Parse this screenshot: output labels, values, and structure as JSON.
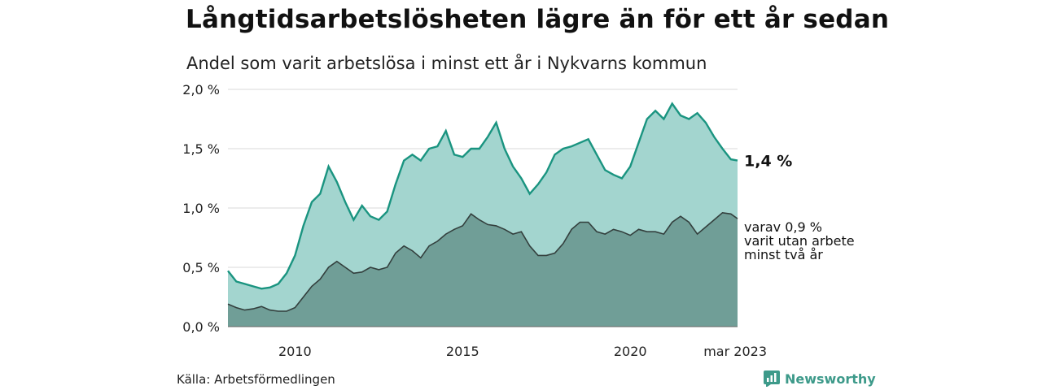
{
  "title": "Långtidsarbetslösheten lägre än för ett år sedan",
  "subtitle": "Andel som varit arbetslösa i minst ett år i Nykvarns kommun",
  "source": "Källa: Arbetsförmedlingen",
  "brand": "Newsworthy",
  "colors": {
    "total_line": "#1a9480",
    "total_fill": "#a3d5cf",
    "sub_line": "#333f3d",
    "sub_fill": "#709e97",
    "brand": "#3d9a8a",
    "grid": "#d9d9d9"
  },
  "chart_data": {
    "type": "area",
    "x_range": [
      2008.0,
      2023.2
    ],
    "ylim": [
      0,
      2.0
    ],
    "y_ticks": [
      {
        "value": 0,
        "label": "0,0 %"
      },
      {
        "value": 0.5,
        "label": "0,5 %"
      },
      {
        "value": 1.0,
        "label": "1,0 %"
      },
      {
        "value": 1.5,
        "label": "1,5 %"
      },
      {
        "value": 2.0,
        "label": "2,0 %"
      }
    ],
    "x_ticks": [
      {
        "value": 2010,
        "label": "2010"
      },
      {
        "value": 2015,
        "label": "2015"
      },
      {
        "value": 2020,
        "label": "2020"
      },
      {
        "value": 2023.2,
        "label": "mar 2023"
      }
    ],
    "grid": true,
    "series": [
      {
        "name": "Andel som varit arbetslösa i minst ett år",
        "end_label": "1,4 %",
        "points": [
          [
            2008.0,
            0.47
          ],
          [
            2008.25,
            0.38
          ],
          [
            2008.5,
            0.36
          ],
          [
            2008.75,
            0.34
          ],
          [
            2009.0,
            0.32
          ],
          [
            2009.25,
            0.33
          ],
          [
            2009.5,
            0.36
          ],
          [
            2009.75,
            0.45
          ],
          [
            2010.0,
            0.6
          ],
          [
            2010.25,
            0.85
          ],
          [
            2010.5,
            1.05
          ],
          [
            2010.75,
            1.12
          ],
          [
            2011.0,
            1.35
          ],
          [
            2011.25,
            1.22
          ],
          [
            2011.5,
            1.05
          ],
          [
            2011.75,
            0.9
          ],
          [
            2012.0,
            1.02
          ],
          [
            2012.25,
            0.93
          ],
          [
            2012.5,
            0.9
          ],
          [
            2012.75,
            0.97
          ],
          [
            2013.0,
            1.2
          ],
          [
            2013.25,
            1.4
          ],
          [
            2013.5,
            1.45
          ],
          [
            2013.75,
            1.4
          ],
          [
            2014.0,
            1.5
          ],
          [
            2014.25,
            1.52
          ],
          [
            2014.5,
            1.65
          ],
          [
            2014.75,
            1.45
          ],
          [
            2015.0,
            1.43
          ],
          [
            2015.25,
            1.5
          ],
          [
            2015.5,
            1.5
          ],
          [
            2015.75,
            1.6
          ],
          [
            2016.0,
            1.72
          ],
          [
            2016.25,
            1.5
          ],
          [
            2016.5,
            1.35
          ],
          [
            2016.75,
            1.25
          ],
          [
            2017.0,
            1.12
          ],
          [
            2017.25,
            1.2
          ],
          [
            2017.5,
            1.3
          ],
          [
            2017.75,
            1.45
          ],
          [
            2018.0,
            1.5
          ],
          [
            2018.25,
            1.52
          ],
          [
            2018.5,
            1.55
          ],
          [
            2018.75,
            1.58
          ],
          [
            2019.0,
            1.45
          ],
          [
            2019.25,
            1.32
          ],
          [
            2019.5,
            1.28
          ],
          [
            2019.75,
            1.25
          ],
          [
            2020.0,
            1.35
          ],
          [
            2020.25,
            1.55
          ],
          [
            2020.5,
            1.75
          ],
          [
            2020.75,
            1.82
          ],
          [
            2021.0,
            1.75
          ],
          [
            2021.25,
            1.88
          ],
          [
            2021.5,
            1.78
          ],
          [
            2021.75,
            1.75
          ],
          [
            2022.0,
            1.8
          ],
          [
            2022.25,
            1.72
          ],
          [
            2022.5,
            1.6
          ],
          [
            2022.75,
            1.5
          ],
          [
            2023.0,
            1.41
          ],
          [
            2023.2,
            1.4
          ]
        ]
      },
      {
        "name": "varav 0,9 % varit utan arbete minst två år",
        "end_label_lines": [
          "varav 0,9 %",
          "varit utan arbete",
          "minst två år"
        ],
        "points": [
          [
            2008.0,
            0.19
          ],
          [
            2008.25,
            0.16
          ],
          [
            2008.5,
            0.14
          ],
          [
            2008.75,
            0.15
          ],
          [
            2009.0,
            0.17
          ],
          [
            2009.25,
            0.14
          ],
          [
            2009.5,
            0.13
          ],
          [
            2009.75,
            0.13
          ],
          [
            2010.0,
            0.16
          ],
          [
            2010.25,
            0.25
          ],
          [
            2010.5,
            0.34
          ],
          [
            2010.75,
            0.4
          ],
          [
            2011.0,
            0.5
          ],
          [
            2011.25,
            0.55
          ],
          [
            2011.5,
            0.5
          ],
          [
            2011.75,
            0.45
          ],
          [
            2012.0,
            0.46
          ],
          [
            2012.25,
            0.5
          ],
          [
            2012.5,
            0.48
          ],
          [
            2012.75,
            0.5
          ],
          [
            2013.0,
            0.62
          ],
          [
            2013.25,
            0.68
          ],
          [
            2013.5,
            0.64
          ],
          [
            2013.75,
            0.58
          ],
          [
            2014.0,
            0.68
          ],
          [
            2014.25,
            0.72
          ],
          [
            2014.5,
            0.78
          ],
          [
            2014.75,
            0.82
          ],
          [
            2015.0,
            0.85
          ],
          [
            2015.25,
            0.95
          ],
          [
            2015.5,
            0.9
          ],
          [
            2015.75,
            0.86
          ],
          [
            2016.0,
            0.85
          ],
          [
            2016.25,
            0.82
          ],
          [
            2016.5,
            0.78
          ],
          [
            2016.75,
            0.8
          ],
          [
            2017.0,
            0.68
          ],
          [
            2017.25,
            0.6
          ],
          [
            2017.5,
            0.6
          ],
          [
            2017.75,
            0.62
          ],
          [
            2018.0,
            0.7
          ],
          [
            2018.25,
            0.82
          ],
          [
            2018.5,
            0.88
          ],
          [
            2018.75,
            0.88
          ],
          [
            2019.0,
            0.8
          ],
          [
            2019.25,
            0.78
          ],
          [
            2019.5,
            0.82
          ],
          [
            2019.75,
            0.8
          ],
          [
            2020.0,
            0.77
          ],
          [
            2020.25,
            0.82
          ],
          [
            2020.5,
            0.8
          ],
          [
            2020.75,
            0.8
          ],
          [
            2021.0,
            0.78
          ],
          [
            2021.25,
            0.88
          ],
          [
            2021.5,
            0.93
          ],
          [
            2021.75,
            0.88
          ],
          [
            2022.0,
            0.78
          ],
          [
            2022.25,
            0.84
          ],
          [
            2022.5,
            0.9
          ],
          [
            2022.75,
            0.96
          ],
          [
            2023.0,
            0.95
          ],
          [
            2023.2,
            0.91
          ]
        ]
      }
    ]
  }
}
